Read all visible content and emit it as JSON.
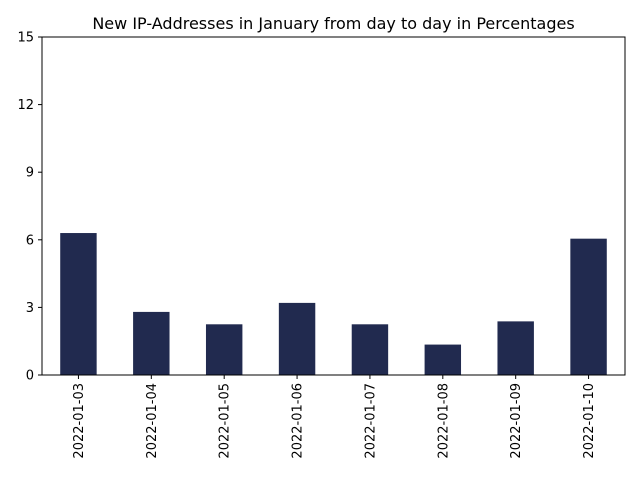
{
  "chart_data": {
    "type": "bar",
    "title": "New IP-Addresses in January from day to day in Percentages",
    "xlabel": "",
    "ylabel": "",
    "categories": [
      "2022-01-03",
      "2022-01-04",
      "2022-01-05",
      "2022-01-06",
      "2022-01-07",
      "2022-01-08",
      "2022-01-09",
      "2022-01-10"
    ],
    "values": [
      6.3,
      2.8,
      2.25,
      3.2,
      2.25,
      1.35,
      2.38,
      6.05
    ],
    "ylim": [
      0,
      15
    ],
    "yticks": [
      "0",
      "3",
      "6",
      "9",
      "12",
      "15"
    ],
    "bar_color": "#212a4f",
    "grid": false,
    "legend": "none"
  }
}
